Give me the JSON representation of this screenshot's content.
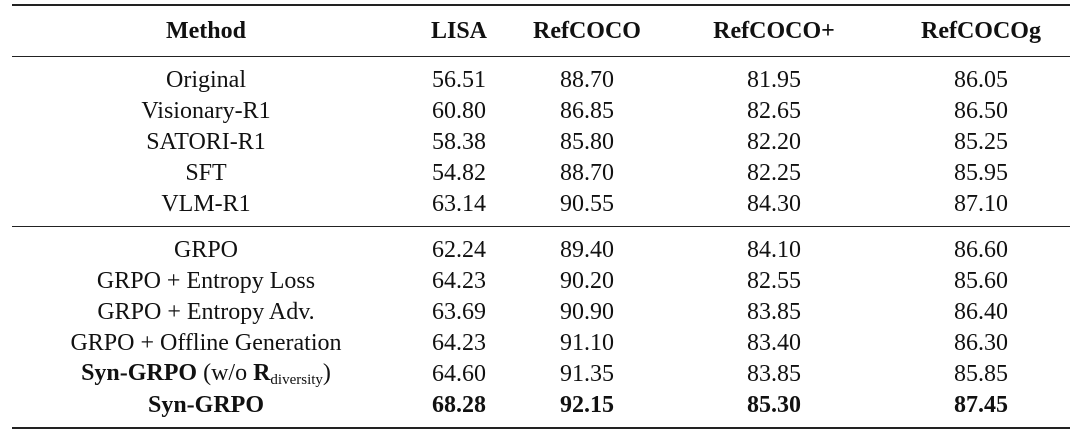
{
  "table": {
    "header": [
      "Method",
      "LISA",
      "RefCOCO",
      "RefCOCO+",
      "RefCOCOg"
    ],
    "groups": [
      [
        {
          "method": "Original",
          "values": [
            "56.51",
            "88.70",
            "81.95",
            "86.05"
          ]
        },
        {
          "method": "Visionary-R1",
          "values": [
            "60.80",
            "86.85",
            "82.65",
            "86.50"
          ]
        },
        {
          "method": "SATORI-R1",
          "values": [
            "58.38",
            "85.80",
            "82.20",
            "85.25"
          ]
        },
        {
          "method": "SFT",
          "values": [
            "54.82",
            "88.70",
            "82.25",
            "85.95"
          ]
        },
        {
          "method": "VLM-R1",
          "values": [
            "63.14",
            "90.55",
            "84.30",
            "87.10"
          ]
        }
      ],
      [
        {
          "method": "GRPO",
          "values": [
            "62.24",
            "89.40",
            "84.10",
            "86.60"
          ]
        },
        {
          "method": "GRPO + Entropy Loss",
          "values": [
            "64.23",
            "90.20",
            "82.55",
            "85.60"
          ]
        },
        {
          "method": "GRPO + Entropy Adv.",
          "values": [
            "63.69",
            "90.90",
            "83.85",
            "86.40"
          ]
        },
        {
          "method": "GRPO + Offline Generation",
          "values": [
            "64.23",
            "91.10",
            "83.40",
            "86.30"
          ]
        },
        {
          "method": "Syn-GRPO",
          "note": {
            "open": "(w/o",
            "symbol": "R",
            "subscript": "diversity",
            "close": ")"
          },
          "method_bold": true,
          "values": [
            "64.60",
            "91.35",
            "83.85",
            "85.85"
          ]
        },
        {
          "method": "Syn-GRPO",
          "method_bold": true,
          "bold": true,
          "values": [
            "68.28",
            "92.15",
            "85.30",
            "87.45"
          ]
        }
      ]
    ]
  }
}
